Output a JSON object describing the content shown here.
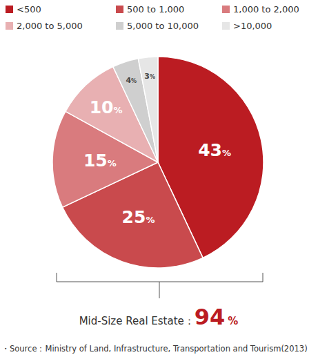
{
  "chart_data": {
    "type": "pie",
    "categories": [
      "<500",
      "500 to 1,000",
      "1,000 to 2,000",
      "2,000 to 5,000",
      "5,000 to 10,000",
      ">10,000"
    ],
    "values": [
      43,
      25,
      15,
      10,
      4,
      3
    ],
    "value_labels": [
      "43%",
      "25%",
      "15%",
      "10%",
      "4%",
      "3%"
    ],
    "colors": [
      "#bb1c22",
      "#c94a4d",
      "#d97b7e",
      "#e8b0b2",
      "#cfcfcf",
      "#e6e6e6"
    ],
    "data_labels": true,
    "legend": "top",
    "annotation": {
      "label": "Mid-Size Real Estate：",
      "value": 94,
      "value_label": "94%"
    },
    "source": "・Source：Ministry of Land, Infrastructure, Transportation and Tourism(2013)"
  }
}
